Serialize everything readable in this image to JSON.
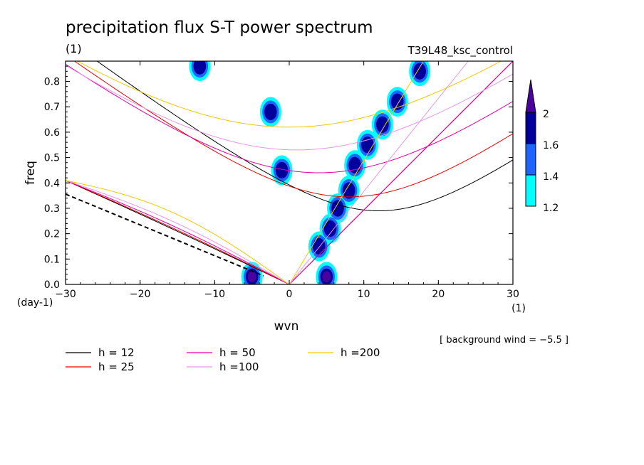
{
  "chart_data": {
    "type": "heatmap",
    "title": "precipitation flux S-T power spectrum",
    "units_label": "(1)",
    "run_name": "T39L48_ksc_control",
    "xlabel": "wvn",
    "ylabel": "freq",
    "y_unit_label": "(day-1)",
    "x_unit_label": "(1)",
    "xlim": [
      -30,
      30
    ],
    "ylim": [
      0,
      0.88
    ],
    "x_ticks": [
      -30,
      -20,
      -10,
      0,
      10,
      20,
      30
    ],
    "x_tick_labels": [
      "−30",
      "−20",
      "−10",
      "0",
      "10",
      "20",
      "30"
    ],
    "y_ticks": [
      0.0,
      0.1,
      0.2,
      0.3,
      0.4,
      0.5,
      0.6,
      0.7,
      0.8
    ],
    "y_tick_labels": [
      "0.0",
      "0.1",
      "0.2",
      "0.3",
      "0.4",
      "0.5",
      "0.6",
      "0.7",
      "0.8"
    ],
    "background_wind_text": "[ background wind = −5.5 ]",
    "colorbar": {
      "levels": [
        1.2,
        1.4,
        1.6,
        2
      ],
      "level_labels": [
        "1.2",
        "1.4",
        "1.6",
        "2"
      ],
      "colors": [
        "#00ffff",
        "#1e64ff",
        "#00009b",
        "#4b00a0"
      ]
    },
    "legend": [
      {
        "label": "h = 12",
        "color": "#000000"
      },
      {
        "label": "h = 25",
        "color": "#e60000"
      },
      {
        "label": "h = 50",
        "color": "#e600a0"
      },
      {
        "label": "h =100",
        "color": "#e696e6"
      },
      {
        "label": "h =200",
        "color": "#f0c800"
      }
    ],
    "dispersion_curves": [
      {
        "h": 12,
        "color": "#000000",
        "kelvin_peak_x": 30,
        "ig_min_freq": 0.29,
        "ig_min_x": 12
      },
      {
        "h": 25,
        "color": "#e60000",
        "kelvin_peak_x": 30,
        "ig_min_freq": 0.345,
        "ig_min_x": 8
      },
      {
        "h": 50,
        "color": "#e600a0",
        "kelvin_peak_x": 30,
        "ig_min_freq": 0.44,
        "ig_min_x": 4
      },
      {
        "h": 100,
        "color": "#e696e6",
        "kelvin_peak_x": 24,
        "ig_min_freq": 0.53,
        "ig_min_x": 1
      },
      {
        "h": 200,
        "color": "#f0c800",
        "kelvin_peak_x": 18,
        "ig_min_freq": 0.62,
        "ig_min_x": 0
      }
    ],
    "spectral_peaks": [
      {
        "x": 5.0,
        "y": 0.03,
        "level": 2
      },
      {
        "x": -5.0,
        "y": 0.03,
        "level": 2
      },
      {
        "x": 4.0,
        "y": 0.15,
        "level": 1.6
      },
      {
        "x": 5.5,
        "y": 0.22,
        "level": 1.6
      },
      {
        "x": 6.5,
        "y": 0.3,
        "level": 1.6
      },
      {
        "x": 8.0,
        "y": 0.37,
        "level": 1.6
      },
      {
        "x": 8.8,
        "y": 0.47,
        "level": 1.6
      },
      {
        "x": 10.5,
        "y": 0.55,
        "level": 1.6
      },
      {
        "x": 12.5,
        "y": 0.63,
        "level": 1.6
      },
      {
        "x": 14.5,
        "y": 0.72,
        "level": 1.6
      },
      {
        "x": 17.5,
        "y": 0.84,
        "level": 1.6
      },
      {
        "x": -1.0,
        "y": 0.45,
        "level": 1.6
      },
      {
        "x": -2.5,
        "y": 0.68,
        "level": 1.6
      },
      {
        "x": -12,
        "y": 0.86,
        "level": 1.6
      }
    ]
  }
}
